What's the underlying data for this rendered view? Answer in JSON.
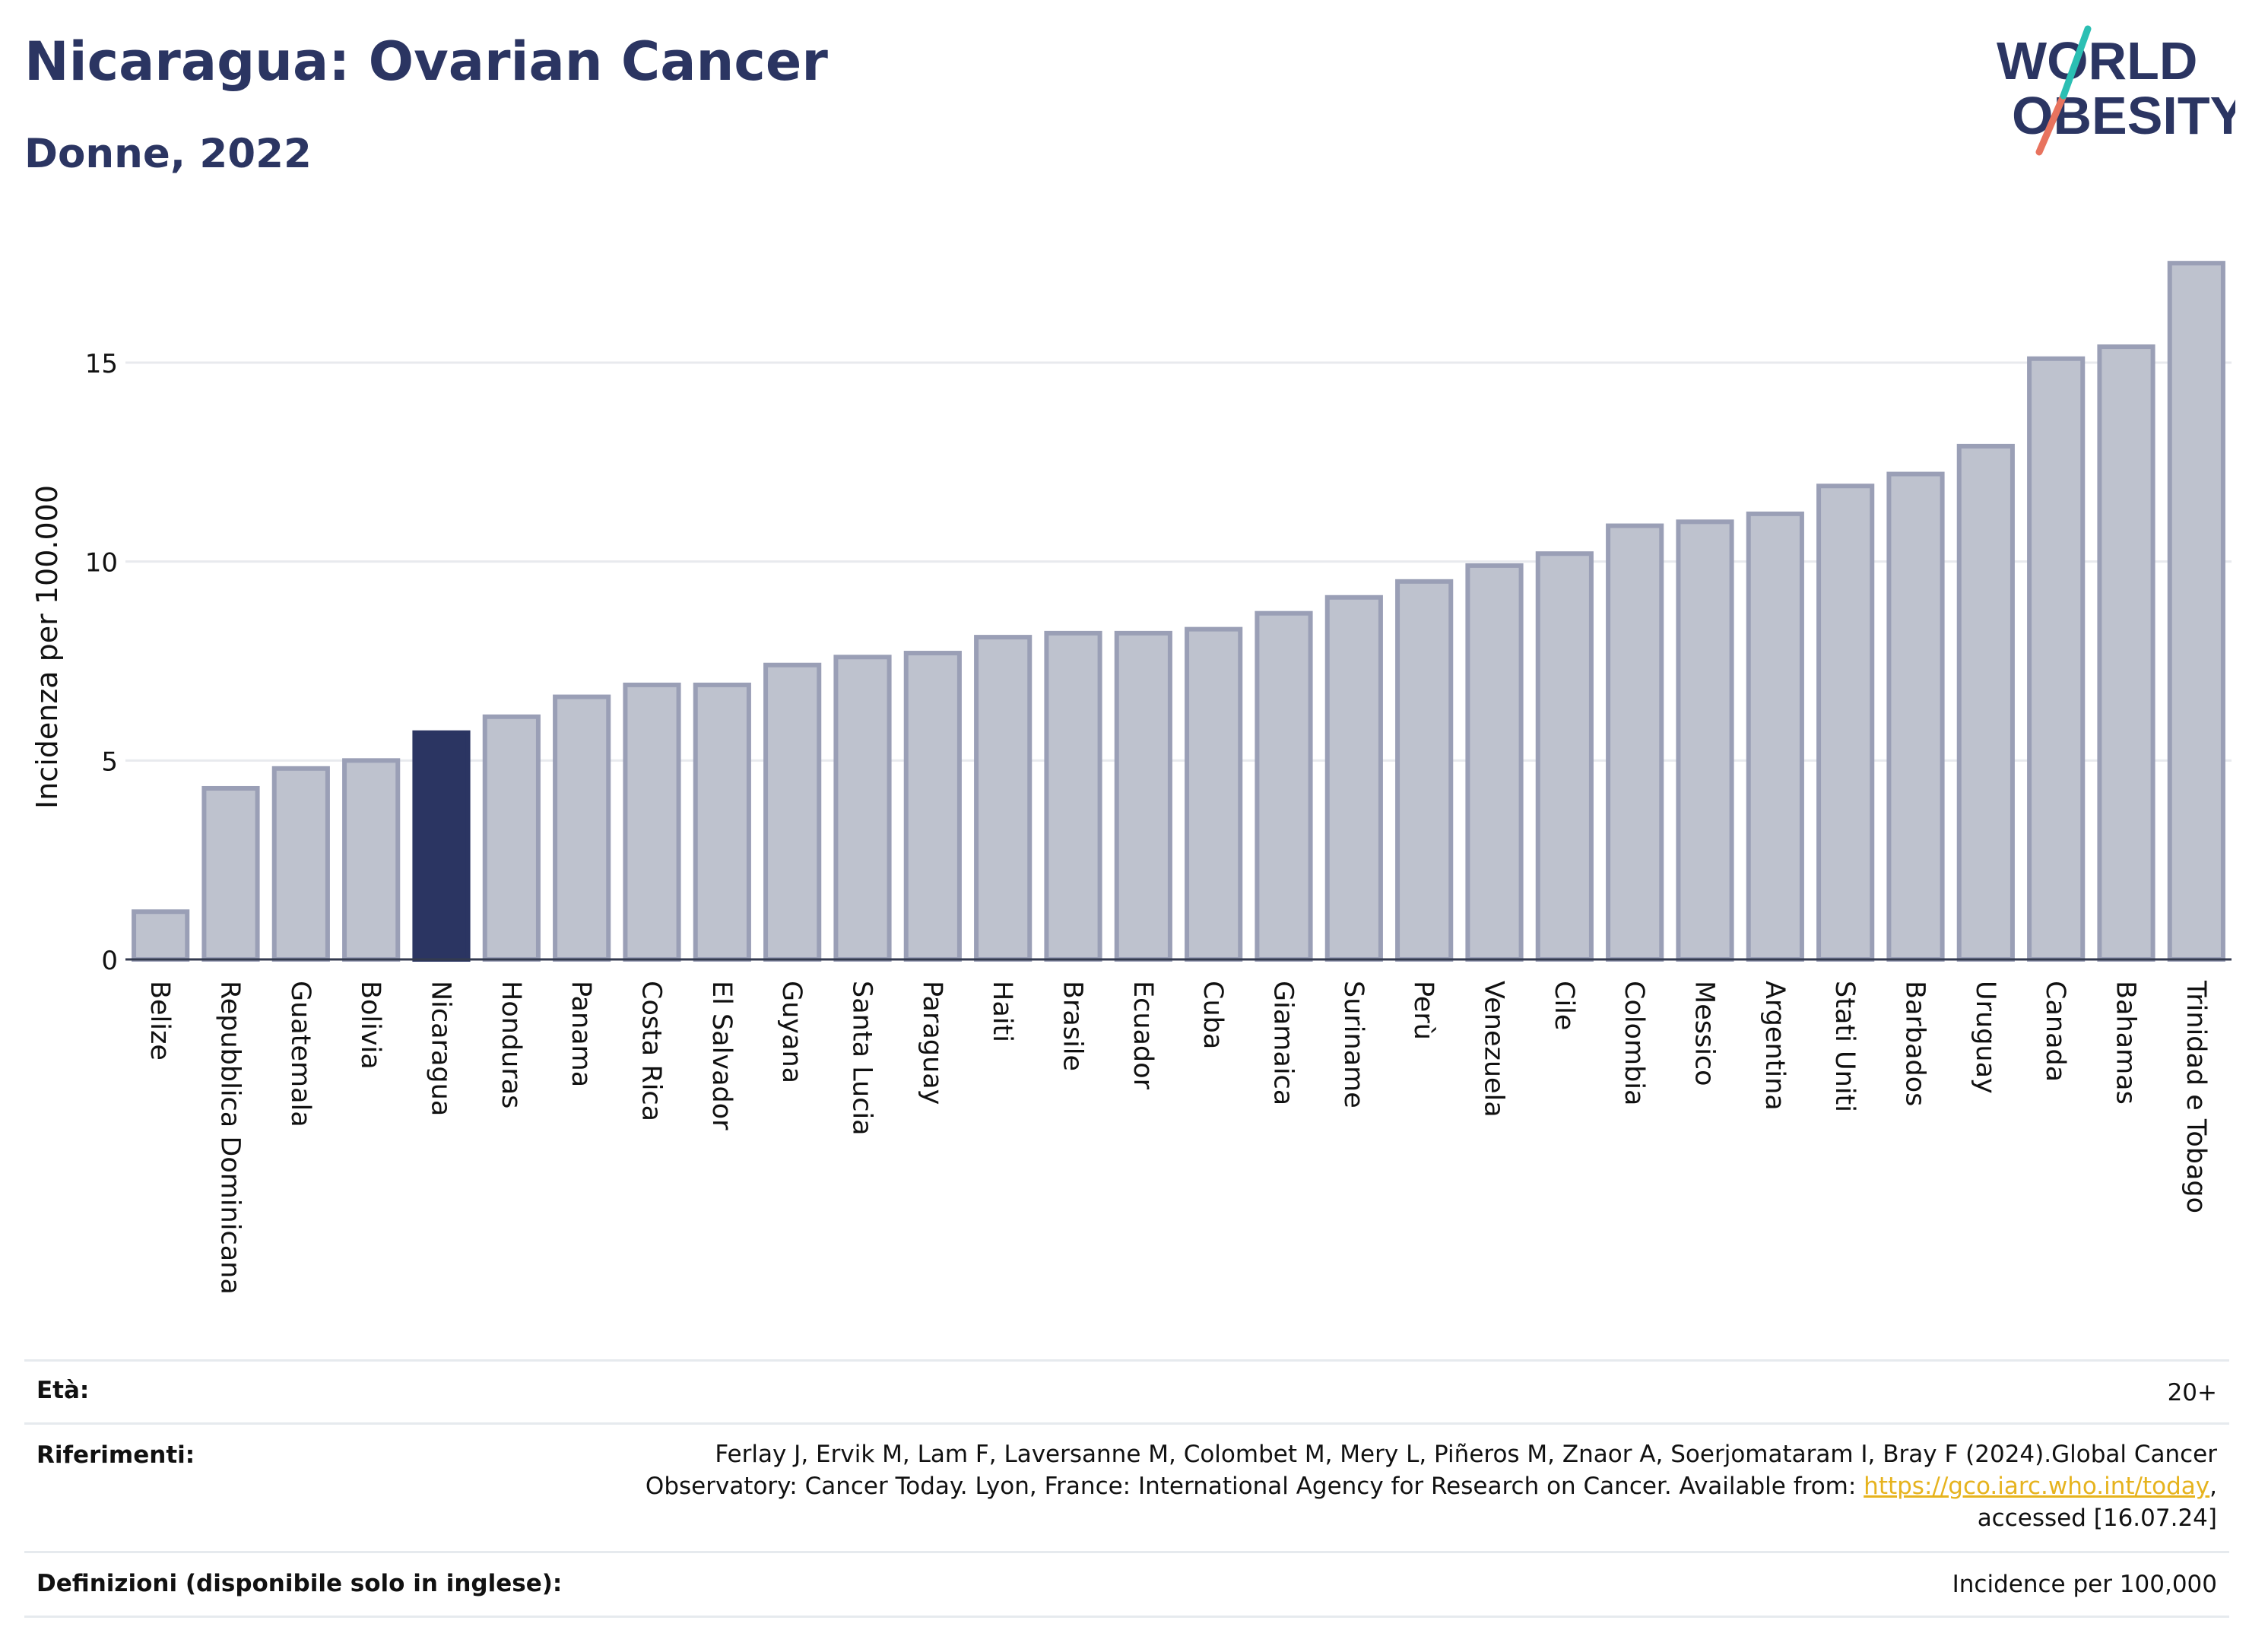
{
  "header": {
    "title": "Nicaragua: Ovarian Cancer",
    "subtitle": "Donne, 2022",
    "logo_line1": "WORLD",
    "logo_line2": "OBESITY"
  },
  "colors": {
    "bar": "#bec2ce",
    "bar_border": "#9a9fb6",
    "highlight": "#2b3562",
    "text": "#2b3562",
    "link": "#e6b31e",
    "logo_teal": "#2bbfb3",
    "logo_coral": "#e8735e"
  },
  "chart_data": {
    "type": "bar",
    "ylabel": "Incidenza per 100.000",
    "ylim": [
      0,
      18
    ],
    "yticks": [
      0,
      5,
      10,
      15
    ],
    "grid": true,
    "highlight": "Nicaragua",
    "categories": [
      "Belize",
      "Repubblica Dominicana",
      "Guatemala",
      "Bolivia",
      "Nicaragua",
      "Honduras",
      "Panama",
      "Costa Rica",
      "El Salvador",
      "Guyana",
      "Santa Lucia",
      "Paraguay",
      "Haiti",
      "Brasile",
      "Ecuador",
      "Cuba",
      "Giamaica",
      "Suriname",
      "Perù",
      "Venezuela",
      "Cile",
      "Colombia",
      "Messico",
      "Argentina",
      "Stati Uniti",
      "Barbados",
      "Uruguay",
      "Canada",
      "Bahamas",
      "Trinidad e Tobago"
    ],
    "values": [
      1.2,
      4.3,
      4.8,
      5.0,
      5.7,
      6.1,
      6.6,
      6.9,
      6.9,
      7.4,
      7.6,
      7.7,
      8.1,
      8.2,
      8.2,
      8.3,
      8.7,
      9.1,
      9.5,
      9.9,
      10.2,
      10.9,
      11.0,
      11.2,
      11.9,
      12.2,
      12.9,
      15.1,
      15.4,
      17.5
    ]
  },
  "info": {
    "age_label": "Età:",
    "age_value": "20+",
    "refs_label": "Riferimenti:",
    "refs_line1": "Ferlay J, Ervik M, Lam F, Laversanne M, Colombet M, Mery L, Piñeros M, Znaor A, Soerjomataram I, Bray F (2024).Global Cancer",
    "refs_line2_pre": "Observatory: Cancer Today. Lyon, France: International Agency for Research on Cancer. Available from: ",
    "refs_link": "https://gco.iarc.who.int/today",
    "refs_line2_post": ",",
    "refs_line3": "accessed [16.07.24]",
    "defs_label": "Definizioni (disponibile solo in inglese):",
    "defs_value": "Incidence per 100,000"
  }
}
